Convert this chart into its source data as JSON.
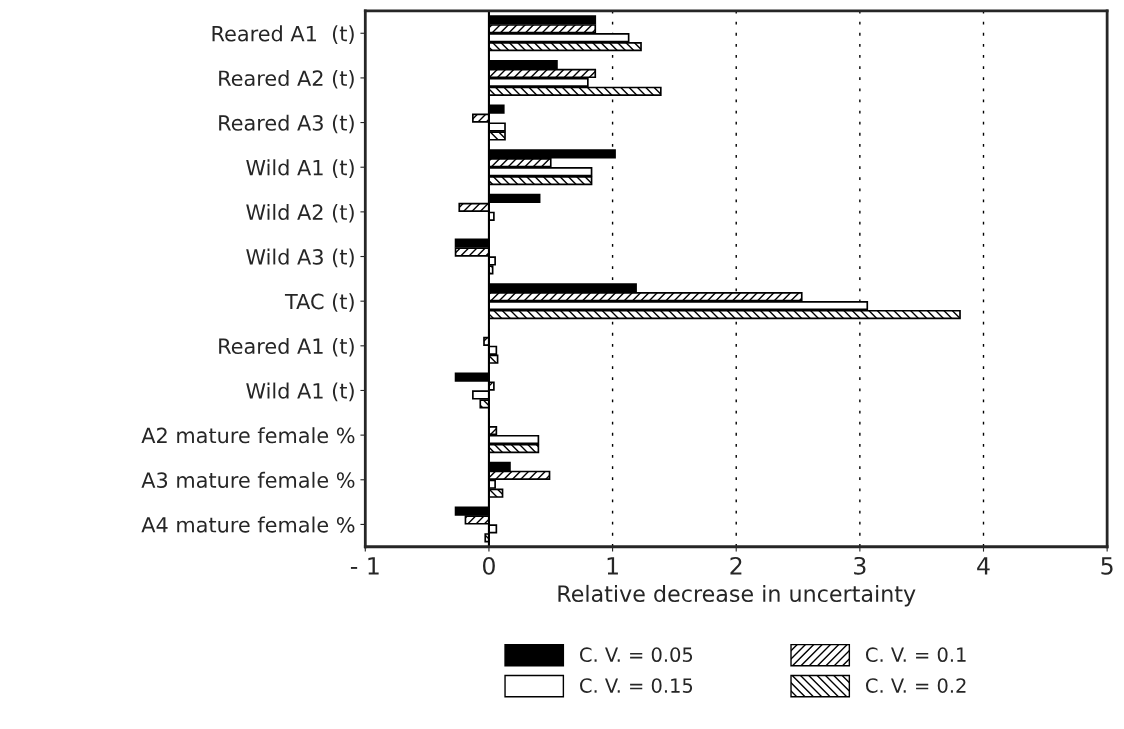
{
  "chart_data": {
    "type": "bar",
    "orientation": "horizontal",
    "xlabel": "Relative decrease in uncertainty",
    "categories": [
      "Reared A1  (t)",
      "Reared A2 (t)",
      "Reared A3 (t)",
      "Wild A1 (t)",
      "Wild A2 (t)",
      "Wild A3 (t)",
      "TAC (t)",
      "Reared A1 (t)",
      "Wild A1 (t)",
      "A2 mature female %",
      "A3 mature female %",
      "A4 mature female %"
    ],
    "series": [
      {
        "name": "C. V. = 0.05",
        "color": "#000000",
        "values": [
          0.86,
          0.55,
          0.12,
          1.02,
          0.41,
          -0.27,
          1.19,
          0.0,
          -0.27,
          0.0,
          0.17,
          -0.27
        ]
      },
      {
        "name": "C. V. = 0.1",
        "color": "#000000",
        "values": [
          0.86,
          0.86,
          -0.13,
          0.5,
          -0.24,
          -0.27,
          2.53,
          -0.04,
          0.04,
          0.06,
          0.49,
          -0.19
        ]
      },
      {
        "name": "C. V. = 0.15",
        "color": "#ffffff",
        "values": [
          1.13,
          0.8,
          0.13,
          0.83,
          0.04,
          0.05,
          3.06,
          0.06,
          -0.13,
          0.4,
          0.05,
          0.06
        ]
      },
      {
        "name": "C. V. = 0.2",
        "color": "#000000",
        "values": [
          1.23,
          1.39,
          0.13,
          0.83,
          0.0,
          0.03,
          3.81,
          0.07,
          -0.07,
          0.4,
          0.11,
          -0.03
        ]
      }
    ],
    "xlim": [
      -1,
      5
    ],
    "xticks": [
      {
        "value": -1,
        "label": "- 1"
      },
      0,
      1,
      2,
      3,
      4,
      5
    ],
    "grid": "x",
    "legend": "bottom"
  }
}
